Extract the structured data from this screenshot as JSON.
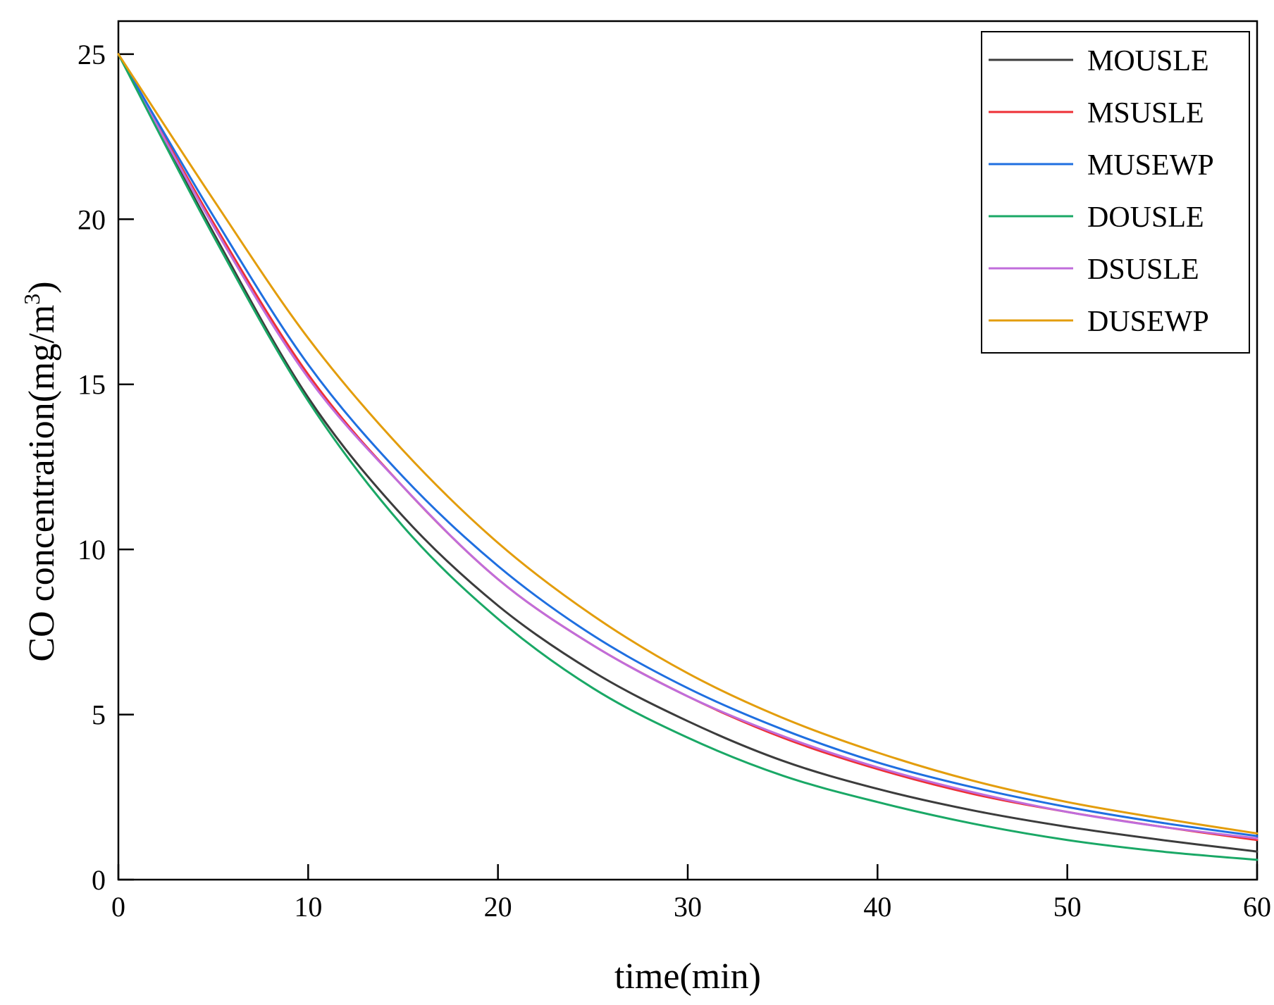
{
  "chart_data": {
    "type": "line",
    "title": "",
    "xlabel": "time(min)",
    "ylabel_main": "CO concentration(mg/m",
    "ylabel_sup": "3",
    "ylabel_close": ")",
    "xlim": [
      0,
      60
    ],
    "ylim": [
      0,
      26
    ],
    "xticks": [
      0,
      10,
      20,
      30,
      40,
      50,
      60
    ],
    "yticks": [
      0,
      5,
      10,
      15,
      20,
      25
    ],
    "grid": false,
    "legend_position": "top-right",
    "x": [
      0,
      5,
      10,
      15,
      20,
      25,
      30,
      35,
      40,
      45,
      50,
      55,
      60
    ],
    "series": [
      {
        "name": "MOUSLE",
        "color": "#3c3c3c",
        "values": [
          25,
          19.6,
          14.6,
          11.0,
          8.3,
          6.3,
          4.8,
          3.6,
          2.75,
          2.1,
          1.6,
          1.2,
          0.85
        ]
      },
      {
        "name": "MSUSLE",
        "color": "#ee2f35",
        "values": [
          25,
          19.9,
          15.3,
          11.9,
          9.1,
          7.1,
          5.55,
          4.3,
          3.35,
          2.6,
          2.05,
          1.6,
          1.2
        ]
      },
      {
        "name": "MUSEWP",
        "color": "#1f6fe0",
        "values": [
          25,
          20.1,
          15.6,
          12.2,
          9.5,
          7.4,
          5.8,
          4.55,
          3.55,
          2.8,
          2.2,
          1.72,
          1.32
        ]
      },
      {
        "name": "DOUSLE",
        "color": "#1aa866",
        "values": [
          25,
          19.5,
          14.5,
          10.7,
          7.9,
          5.8,
          4.3,
          3.15,
          2.35,
          1.7,
          1.2,
          0.85,
          0.6
        ]
      },
      {
        "name": "DSUSLE",
        "color": "#c06ddb",
        "values": [
          25,
          19.8,
          15.2,
          11.9,
          9.1,
          7.1,
          5.55,
          4.35,
          3.4,
          2.65,
          2.05,
          1.6,
          1.25
        ]
      },
      {
        "name": "DUSEWP",
        "color": "#e39d0c",
        "values": [
          25,
          20.6,
          16.4,
          13.0,
          10.2,
          8.0,
          6.25,
          4.9,
          3.85,
          3.0,
          2.35,
          1.85,
          1.4
        ]
      }
    ]
  }
}
